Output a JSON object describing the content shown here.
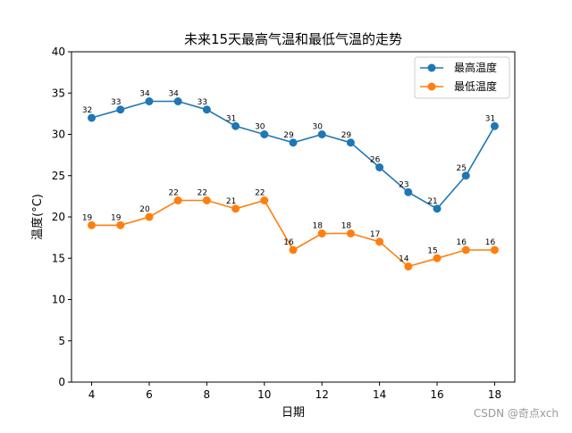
{
  "chart_data": {
    "type": "line",
    "title": "未来15天最高气温和最低气温的走势",
    "xlabel": "日期",
    "ylabel": "温度(°C)",
    "x": [
      4,
      5,
      6,
      7,
      8,
      9,
      10,
      11,
      12,
      13,
      14,
      15,
      16,
      17,
      18
    ],
    "xlim": [
      3.3,
      18.7
    ],
    "ylim": [
      0,
      40
    ],
    "xticks": [
      4,
      6,
      8,
      10,
      12,
      14,
      16,
      18
    ],
    "yticks": [
      0,
      5,
      10,
      15,
      20,
      25,
      30,
      35,
      40
    ],
    "grid": false,
    "legend_position": "top-right",
    "series": [
      {
        "name": "最高温度",
        "color": "#1f77b4",
        "marker": "circle",
        "values": [
          32,
          33,
          34,
          34,
          33,
          31,
          30,
          29,
          30,
          29,
          26,
          23,
          21,
          25,
          31
        ]
      },
      {
        "name": "最低温度",
        "color": "#ff7f0e",
        "marker": "circle",
        "values": [
          19,
          19,
          20,
          22,
          22,
          21,
          22,
          16,
          18,
          18,
          17,
          14,
          15,
          16,
          16
        ]
      }
    ]
  },
  "watermark": "CSDN @奇点xch"
}
